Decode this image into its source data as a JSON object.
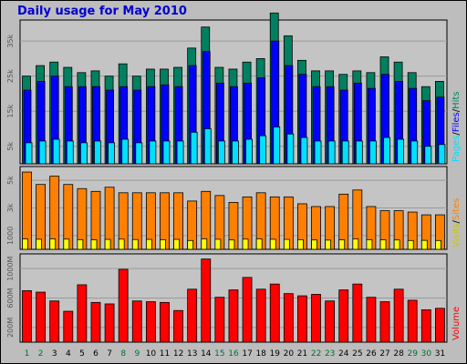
{
  "title": "Daily usage for May 2010",
  "colors": {
    "hits": "#008060",
    "files": "#0000ff",
    "pages": "#00e0ff",
    "visits": "#ffff00",
    "sites": "#ff8000",
    "volume": "#ff0000",
    "weekend_day": "#007030",
    "weekday_day": "#000000"
  },
  "legend": {
    "pages": "Pages",
    "files": "Files",
    "hits": "Hits",
    "sep": "/",
    "visits": "Visits",
    "sites": "Sites",
    "volume": "Volume"
  },
  "chart_data": [
    {
      "type": "bar",
      "title": "Daily usage for May 2010",
      "categories": [
        "1",
        "2",
        "3",
        "4",
        "5",
        "6",
        "7",
        "8",
        "9",
        "10",
        "11",
        "12",
        "13",
        "14",
        "15",
        "16",
        "17",
        "18",
        "19",
        "20",
        "21",
        "22",
        "23",
        "24",
        "25",
        "26",
        "27",
        "28",
        "29",
        "30",
        "31"
      ],
      "weekend_days": [
        "1",
        "2",
        "8",
        "9",
        "15",
        "16",
        "22",
        "23",
        "29",
        "30"
      ],
      "ylim": [
        0,
        41000
      ],
      "yticks": [
        {
          "value": 5000,
          "label": "5k"
        },
        {
          "value": 15000,
          "label": "15k"
        },
        {
          "value": 25000,
          "label": "25k"
        },
        {
          "value": 35000,
          "label": "35k"
        }
      ],
      "series": [
        {
          "name": "Hits",
          "key": "hits",
          "values": [
            25000,
            28000,
            29000,
            27500,
            26000,
            26500,
            25000,
            28500,
            25000,
            27000,
            27000,
            27500,
            33000,
            39000,
            27500,
            27000,
            29000,
            30000,
            43000,
            36500,
            29500,
            26500,
            26500,
            25500,
            26500,
            26000,
            30500,
            29000,
            26000,
            22000,
            23500
          ]
        },
        {
          "name": "Files",
          "key": "files",
          "values": [
            21000,
            23500,
            25000,
            22000,
            22000,
            22000,
            21000,
            22000,
            21000,
            22000,
            22500,
            22000,
            28000,
            32000,
            23000,
            22000,
            23000,
            24500,
            35000,
            28000,
            25500,
            22000,
            22000,
            21000,
            23000,
            21500,
            25500,
            23500,
            21500,
            18000,
            19000
          ]
        },
        {
          "name": "Pages",
          "key": "pages",
          "values": [
            6000,
            6500,
            7000,
            6500,
            6000,
            6500,
            6000,
            7000,
            6000,
            6500,
            6500,
            6500,
            9000,
            10000,
            6500,
            6500,
            7000,
            8000,
            10500,
            8500,
            7500,
            6500,
            6500,
            6500,
            6500,
            6500,
            7500,
            7000,
            6500,
            5000,
            5500
          ]
        }
      ]
    },
    {
      "type": "bar",
      "categories": [
        "1",
        "2",
        "3",
        "4",
        "5",
        "6",
        "7",
        "8",
        "9",
        "10",
        "11",
        "12",
        "13",
        "14",
        "15",
        "16",
        "17",
        "18",
        "19",
        "20",
        "21",
        "22",
        "23",
        "24",
        "25",
        "26",
        "27",
        "28",
        "29",
        "30",
        "31"
      ],
      "ylim": [
        0,
        6000
      ],
      "yticks": [
        {
          "value": 1000,
          "label": "1000"
        },
        {
          "value": 3000,
          "label": "3k"
        },
        {
          "value": 5000,
          "label": "5k"
        }
      ],
      "series": [
        {
          "name": "Visits",
          "key": "visits",
          "values": [
            750,
            730,
            760,
            740,
            700,
            690,
            720,
            740,
            710,
            720,
            700,
            720,
            640,
            760,
            730,
            680,
            740,
            760,
            730,
            720,
            700,
            680,
            670,
            690,
            750,
            700,
            690,
            680,
            640,
            650,
            640
          ]
        },
        {
          "name": "Sites",
          "key": "sites",
          "values": [
            5600,
            4700,
            5300,
            4700,
            4400,
            4200,
            4500,
            4100,
            4100,
            4100,
            4100,
            4100,
            3500,
            4200,
            3900,
            3400,
            3800,
            4100,
            3800,
            3800,
            3300,
            3100,
            3100,
            4000,
            4300,
            3100,
            2800,
            2800,
            2700,
            2500,
            2500
          ]
        }
      ]
    },
    {
      "type": "bar",
      "categories": [
        "1",
        "2",
        "3",
        "4",
        "5",
        "6",
        "7",
        "8",
        "9",
        "10",
        "11",
        "12",
        "13",
        "14",
        "15",
        "16",
        "17",
        "18",
        "19",
        "20",
        "21",
        "22",
        "23",
        "24",
        "25",
        "26",
        "27",
        "28",
        "29",
        "30",
        "31"
      ],
      "ylim": [
        0,
        1200
      ],
      "yticks": [
        {
          "value": 200,
          "label": "200M"
        },
        {
          "value": 600,
          "label": "600M"
        },
        {
          "value": 1000,
          "label": "1000M"
        }
      ],
      "series": [
        {
          "name": "Volume",
          "key": "volume",
          "values": [
            700,
            680,
            560,
            420,
            780,
            540,
            520,
            990,
            560,
            550,
            540,
            430,
            720,
            1130,
            610,
            710,
            880,
            720,
            790,
            660,
            630,
            650,
            560,
            710,
            790,
            610,
            550,
            720,
            570,
            440,
            460
          ]
        }
      ]
    }
  ]
}
